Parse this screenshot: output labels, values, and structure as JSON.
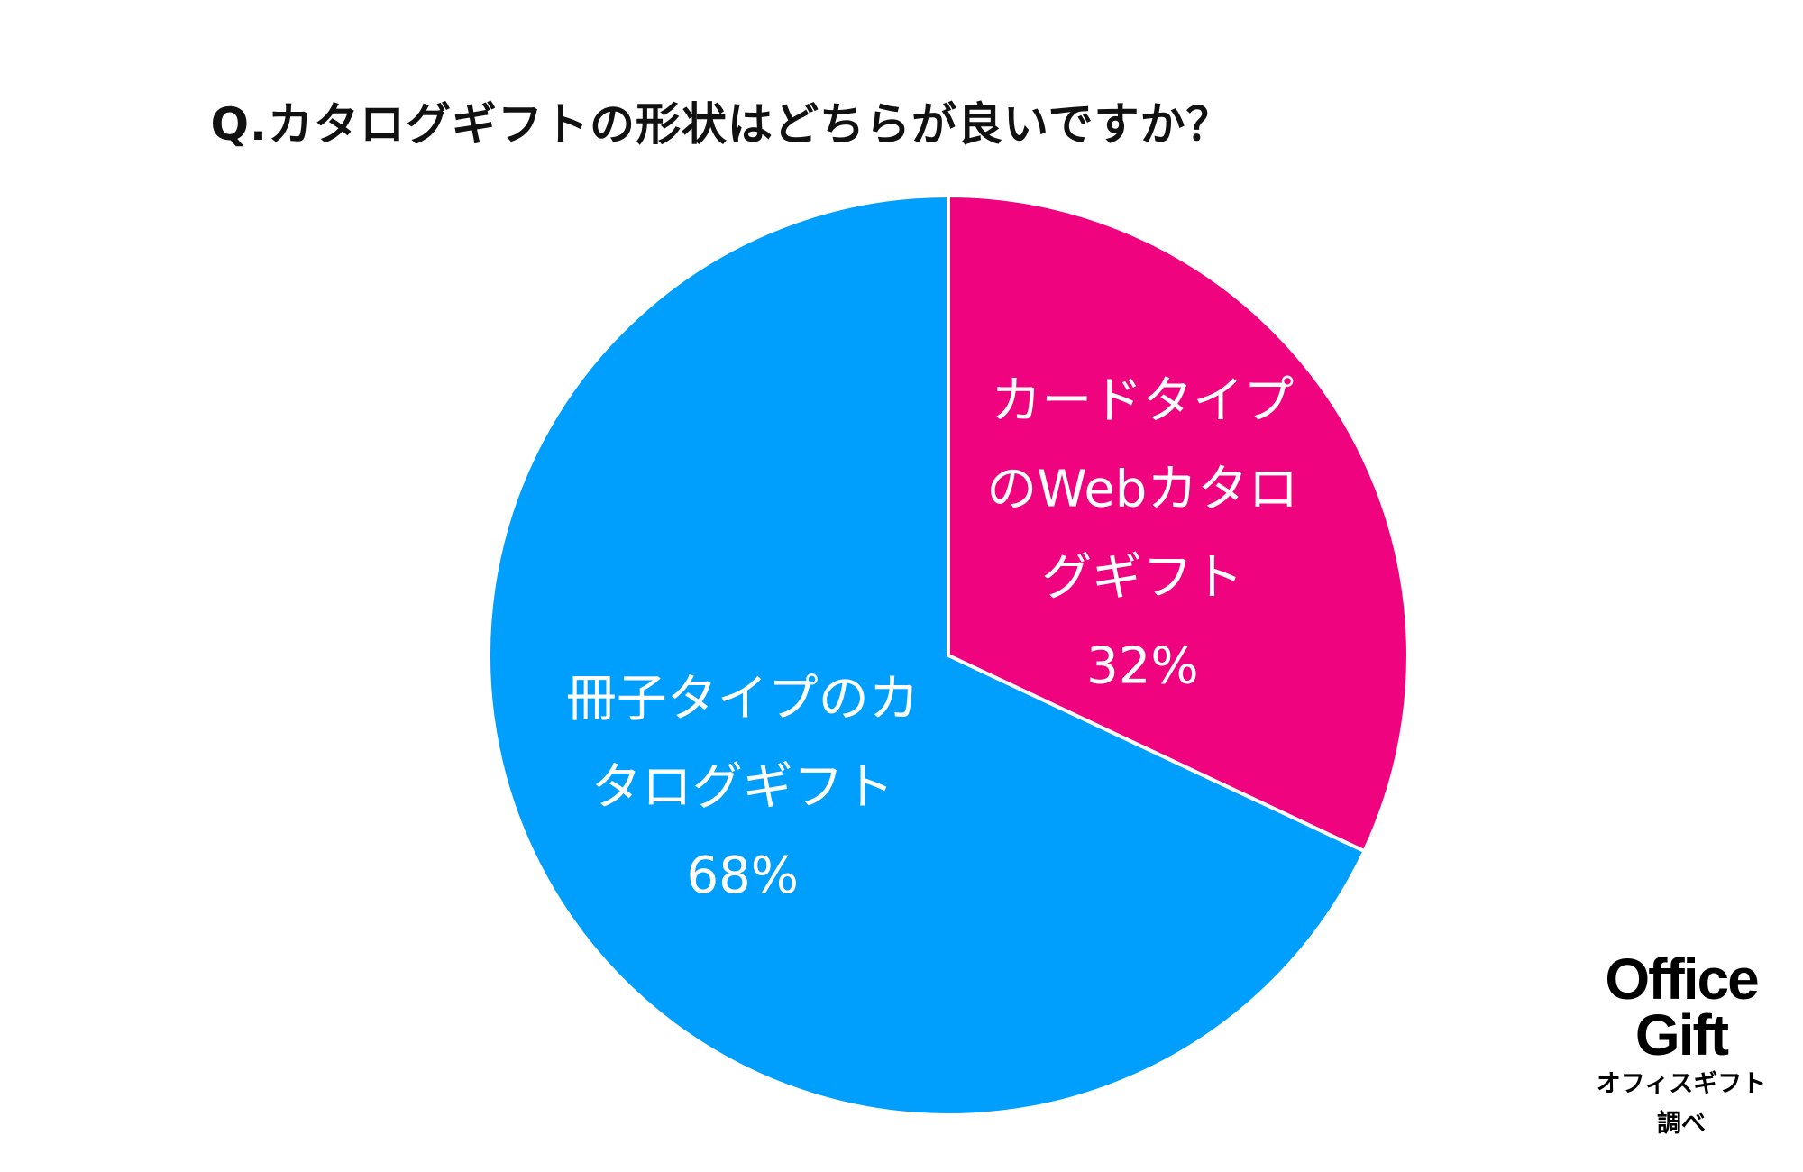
{
  "chart_data": {
    "type": "pie",
    "title": "Q.カタログギフトの形状はどちらが良いですか？",
    "slices": [
      {
        "label_lines": [
          "カードタイプ",
          "のWebカタロ",
          "グギフト"
        ],
        "value": 32,
        "value_label": "32%",
        "color": "#f0037f"
      },
      {
        "label_lines": [
          "冊子タイプのカ",
          "タログギフト"
        ],
        "value": 68,
        "value_label": "68%",
        "color": "#009ffd"
      }
    ],
    "start_angle": "12 o'clock",
    "direction": "clockwise",
    "slice_border_color": "#ffffff"
  },
  "brand": {
    "name_line1": "Office",
    "name_line2": "Gift",
    "sub_line1": "オフィスギフト",
    "sub_line2": "調べ"
  }
}
